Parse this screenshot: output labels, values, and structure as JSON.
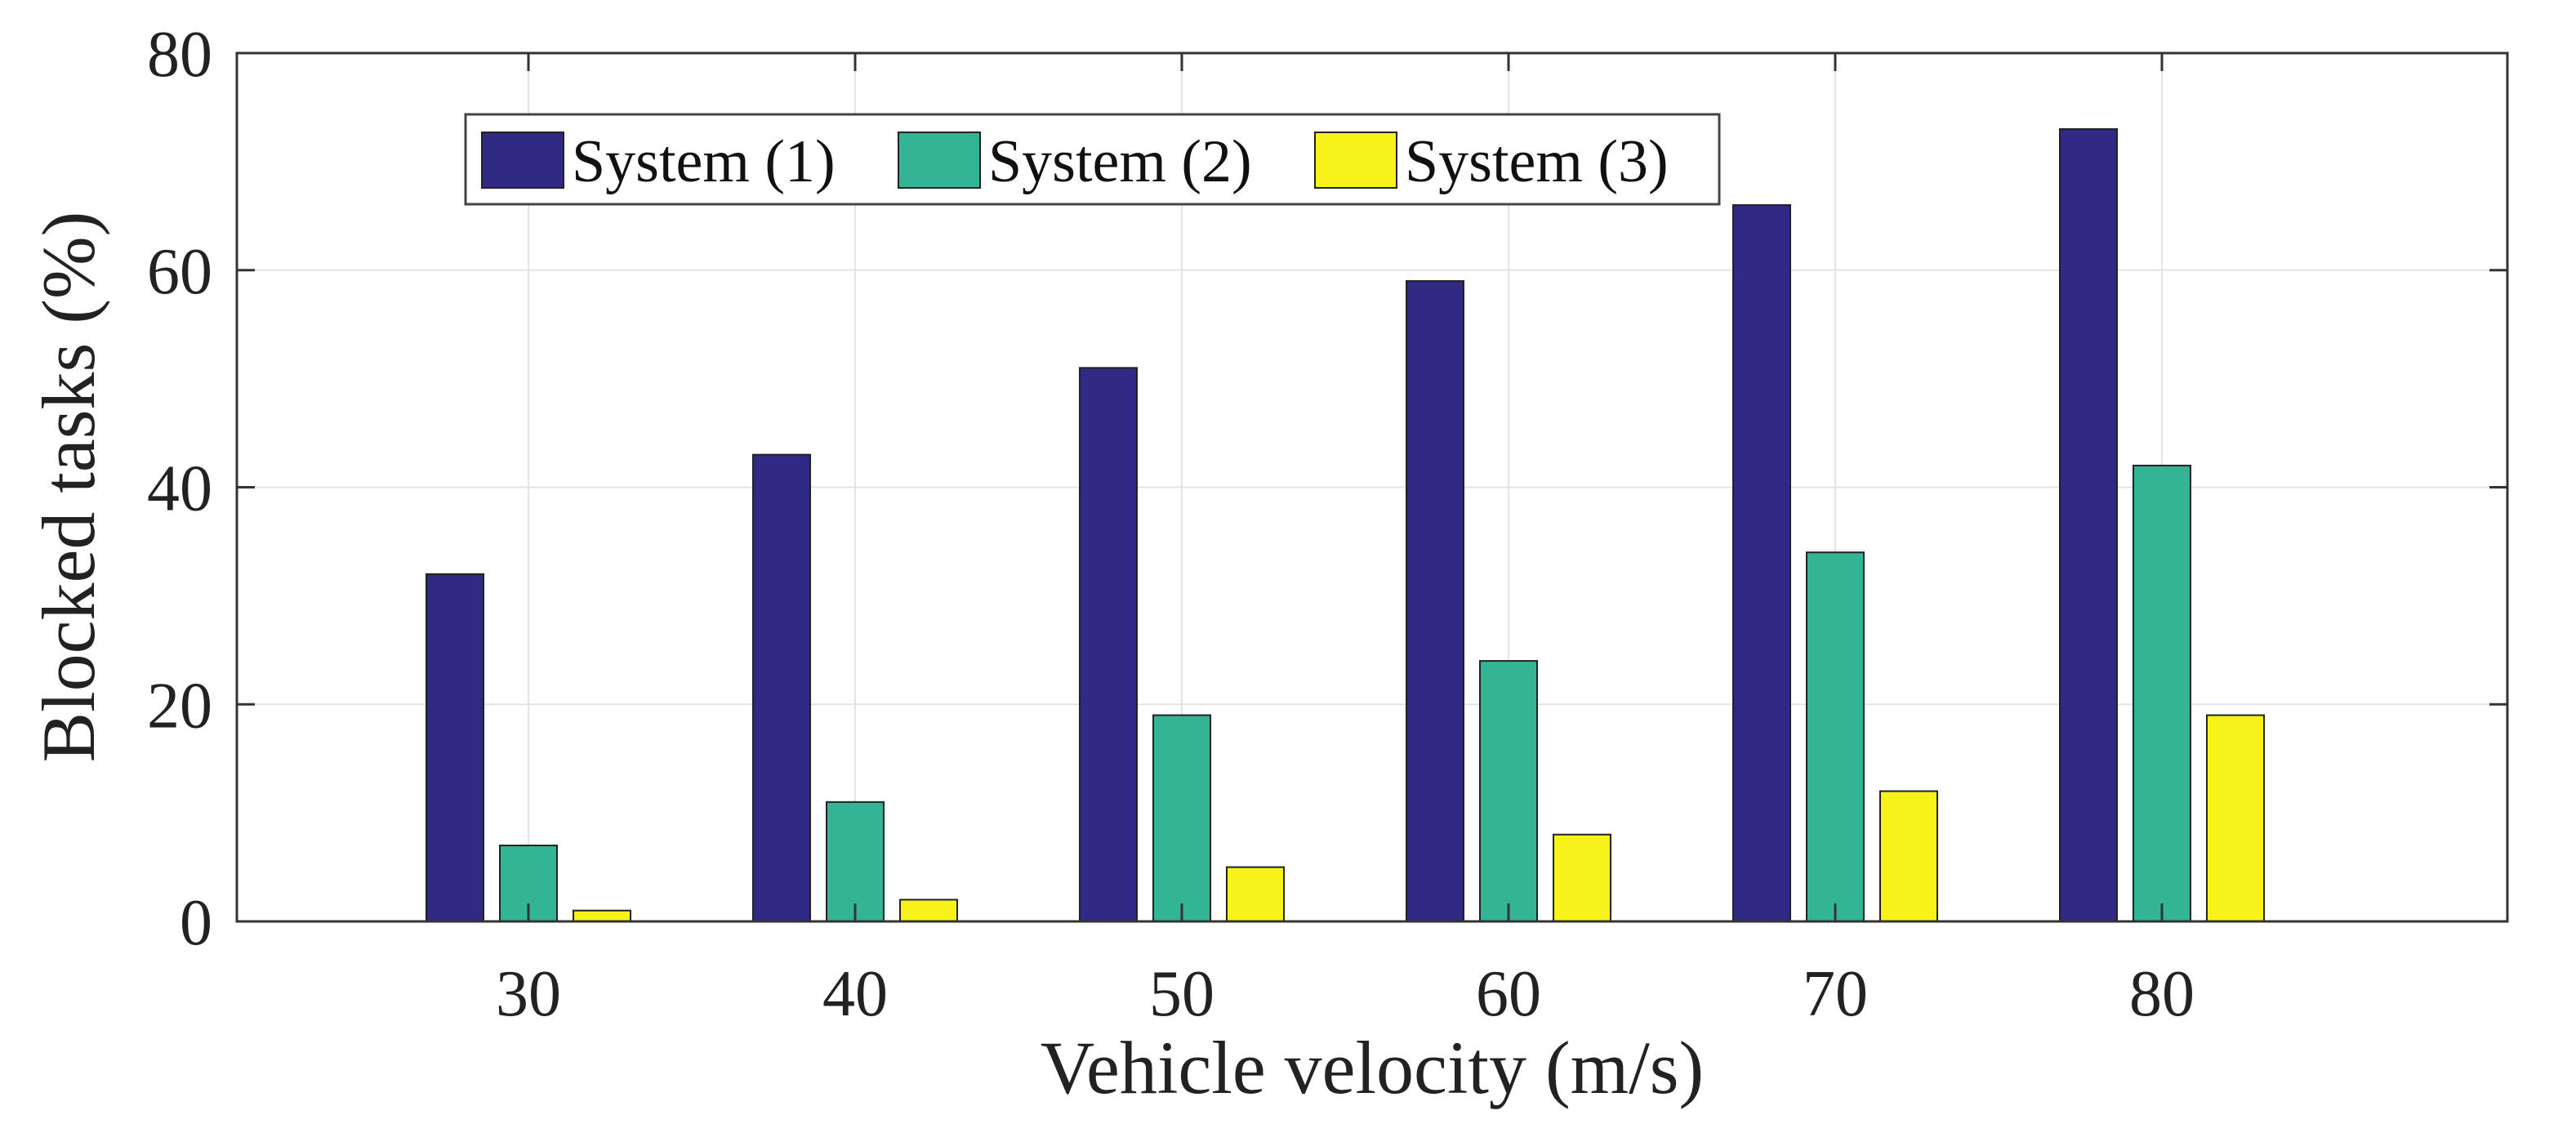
{
  "chart_data": {
    "type": "bar",
    "title": "",
    "xlabel": "Vehicle velocity (m/s)",
    "ylabel": "Blocked tasks (%)",
    "categories": [
      "30",
      "40",
      "50",
      "60",
      "70",
      "80"
    ],
    "ylim": [
      0,
      80
    ],
    "yticks": [
      "0",
      "20",
      "40",
      "60",
      "80"
    ],
    "grid": true,
    "legend_position": "top-left",
    "series": [
      {
        "name": "System (1)",
        "color": "#312a85",
        "values": [
          32,
          43,
          51,
          59,
          66,
          73
        ]
      },
      {
        "name": "System (2)",
        "color": "#33b495",
        "values": [
          7,
          11,
          19,
          24,
          34,
          42
        ]
      },
      {
        "name": "System (3)",
        "color": "#f7f21a",
        "values": [
          1,
          2,
          5,
          8,
          12,
          19
        ]
      }
    ]
  }
}
